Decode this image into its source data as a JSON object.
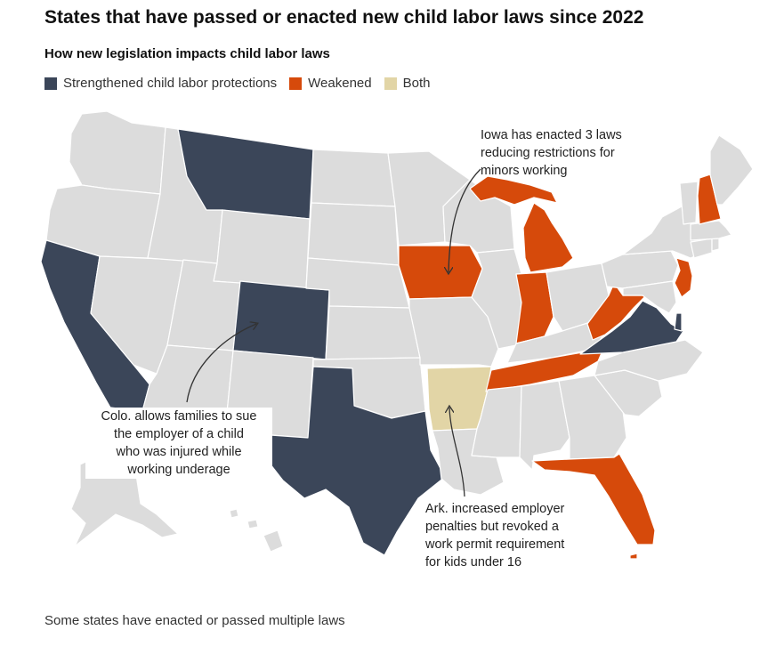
{
  "title": "States that have passed or enacted new child labor laws since 2022",
  "subtitle": "How new legislation impacts child labor laws",
  "legend": [
    {
      "label": "Strengthened child labor protections",
      "color": "#3b4659"
    },
    {
      "label": "Weakened",
      "color": "#d64a0b"
    },
    {
      "label": "Both",
      "color": "#e2d5a6"
    }
  ],
  "colors": {
    "default_state": "#dcdcdc",
    "border": "#ffffff",
    "arrow": "#333333"
  },
  "states": {
    "strengthened": [
      "Montana",
      "Colorado",
      "California",
      "Texas",
      "Virginia",
      "Delaware"
    ],
    "weakened": [
      "Iowa",
      "Michigan",
      "Indiana",
      "Tennessee",
      "West Virginia",
      "New Jersey",
      "New Hampshire",
      "Florida"
    ],
    "both": [
      "Arkansas"
    ]
  },
  "annotations": {
    "iowa": [
      "Iowa has enacted 3 laws",
      "reducing restrictions for",
      "minors working"
    ],
    "colorado": [
      "Colo. allows families to sue",
      "the employer of a child",
      "who was injured while",
      "working underage"
    ],
    "arkansas": [
      "Ark. increased employer",
      "penalties but revoked a",
      "work permit requirement",
      "for kids under 16"
    ]
  },
  "footnote": "Some states have enacted or passed multiple laws"
}
